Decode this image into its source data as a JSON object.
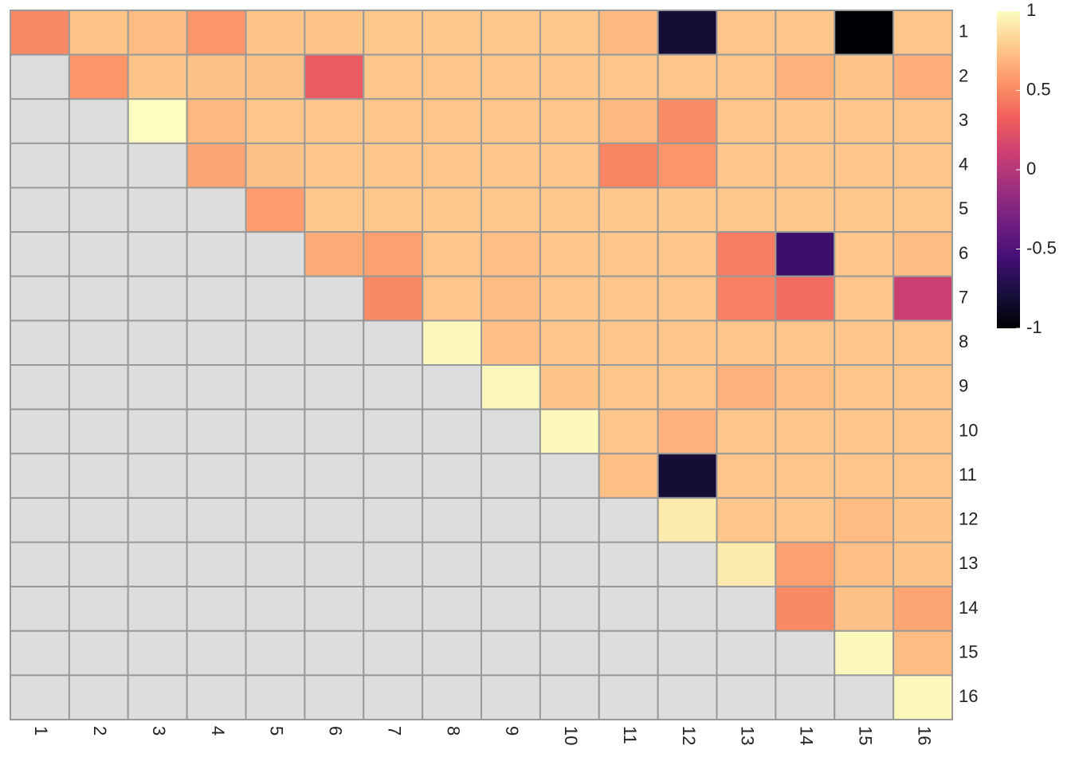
{
  "chart_data": {
    "type": "heatmap",
    "x_categories": [
      "1",
      "2",
      "3",
      "4",
      "5",
      "6",
      "7",
      "8",
      "9",
      "10",
      "11",
      "12",
      "13",
      "14",
      "15",
      "16"
    ],
    "y_categories": [
      "1",
      "2",
      "3",
      "4",
      "5",
      "6",
      "7",
      "8",
      "9",
      "10",
      "11",
      "12",
      "13",
      "14",
      "15",
      "16"
    ],
    "values": [
      [
        0.5,
        0.75,
        0.72,
        0.55,
        0.75,
        0.75,
        0.77,
        0.77,
        0.77,
        0.77,
        0.7,
        -0.8,
        0.76,
        0.76,
        -1,
        0.76
      ],
      [
        null,
        0.55,
        0.75,
        0.74,
        0.74,
        0.3,
        0.76,
        0.76,
        0.76,
        0.76,
        0.76,
        0.76,
        0.76,
        0.68,
        0.75,
        0.66
      ],
      [
        null,
        null,
        1,
        0.7,
        0.76,
        0.76,
        0.76,
        0.76,
        0.76,
        0.76,
        0.7,
        0.52,
        0.76,
        0.76,
        0.76,
        0.76
      ],
      [
        null,
        null,
        null,
        0.62,
        0.74,
        0.76,
        0.76,
        0.76,
        0.76,
        0.76,
        0.48,
        0.55,
        0.76,
        0.76,
        0.76,
        0.76
      ],
      [
        null,
        null,
        null,
        null,
        0.58,
        0.77,
        0.77,
        0.77,
        0.77,
        0.77,
        0.77,
        0.77,
        0.77,
        0.77,
        0.77,
        0.77
      ],
      [
        null,
        null,
        null,
        null,
        null,
        0.65,
        0.6,
        0.76,
        0.73,
        0.76,
        0.76,
        0.76,
        0.45,
        -0.6,
        0.76,
        0.72
      ],
      [
        null,
        null,
        null,
        null,
        null,
        null,
        0.5,
        0.76,
        0.72,
        0.76,
        0.76,
        0.76,
        0.47,
        0.38,
        0.76,
        0.1
      ],
      [
        null,
        null,
        null,
        null,
        null,
        null,
        null,
        0.98,
        0.73,
        0.76,
        0.76,
        0.76,
        0.76,
        0.76,
        0.76,
        0.76
      ],
      [
        null,
        null,
        null,
        null,
        null,
        null,
        null,
        null,
        0.98,
        0.75,
        0.76,
        0.76,
        0.67,
        0.73,
        0.76,
        0.76
      ],
      [
        null,
        null,
        null,
        null,
        null,
        null,
        null,
        null,
        null,
        0.98,
        0.76,
        0.67,
        0.76,
        0.76,
        0.76,
        0.76
      ],
      [
        null,
        null,
        null,
        null,
        null,
        null,
        null,
        null,
        null,
        null,
        0.73,
        -0.8,
        0.76,
        0.76,
        0.76,
        0.76
      ],
      [
        null,
        null,
        null,
        null,
        null,
        null,
        null,
        null,
        null,
        null,
        null,
        0.92,
        0.76,
        0.76,
        0.72,
        0.75
      ],
      [
        null,
        null,
        null,
        null,
        null,
        null,
        null,
        null,
        null,
        null,
        null,
        null,
        0.92,
        0.6,
        0.73,
        0.75
      ],
      [
        null,
        null,
        null,
        null,
        null,
        null,
        null,
        null,
        null,
        null,
        null,
        null,
        null,
        0.5,
        0.74,
        0.62
      ],
      [
        null,
        null,
        null,
        null,
        null,
        null,
        null,
        null,
        null,
        null,
        null,
        null,
        null,
        null,
        0.98,
        0.72
      ],
      [
        null,
        null,
        null,
        null,
        null,
        null,
        null,
        null,
        null,
        null,
        null,
        null,
        null,
        null,
        null,
        0.98
      ]
    ],
    "zlim": [
      -1,
      1
    ],
    "zticks": [
      -1,
      -0.5,
      0,
      0.5,
      1
    ],
    "colorscale": [
      "#000004",
      "#180f3d",
      "#440f76",
      "#721f81",
      "#9e2f7f",
      "#cd4071",
      "#f1605d",
      "#fd9668",
      "#feca8d",
      "#fcfdbf"
    ],
    "na_color": "#dddddd",
    "border_color": "#999999"
  }
}
